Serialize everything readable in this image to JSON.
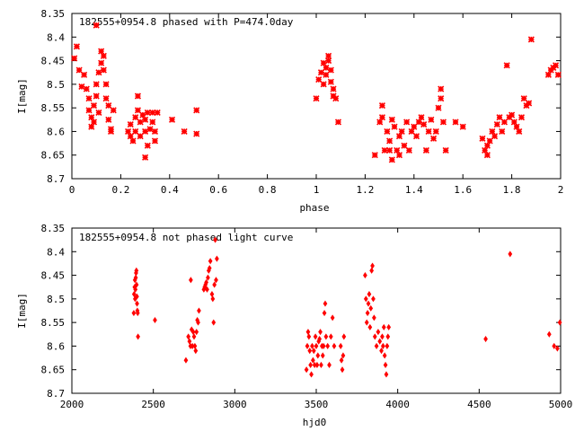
{
  "colors": {
    "marker": "#ff0000",
    "axis": "#000000",
    "background": "#ffffff"
  },
  "chart_data": [
    {
      "type": "scatter",
      "title": "182555+0954.8 phased with P=474.0day",
      "xlabel": "phase",
      "ylabel": "I[mag]",
      "xlim": [
        0,
        2
      ],
      "ylim": [
        8.35,
        8.7
      ],
      "y_inverted": true,
      "grid": false,
      "xticks": [
        0,
        0.2,
        0.4,
        0.6,
        0.8,
        1,
        1.2,
        1.4,
        1.6,
        1.8,
        2
      ],
      "xtick_labels": [
        "0",
        "0.2",
        "0.4",
        "0.6",
        "0.8",
        "1",
        "1.2",
        "1.4",
        "1.6",
        "1.8",
        "2"
      ],
      "yticks": [
        8.35,
        8.4,
        8.45,
        8.5,
        8.55,
        8.6,
        8.65,
        8.7
      ],
      "ytick_labels": [
        "8.35",
        "8.4",
        "8.45",
        "8.5",
        "8.55",
        "8.6",
        "8.65",
        "8.7"
      ],
      "marker": "star",
      "points": [
        [
          0.01,
          8.445
        ],
        [
          0.02,
          8.42
        ],
        [
          0.03,
          8.47
        ],
        [
          0.04,
          8.505
        ],
        [
          0.05,
          8.48
        ],
        [
          0.06,
          8.51
        ],
        [
          0.07,
          8.53
        ],
        [
          0.07,
          8.555
        ],
        [
          0.08,
          8.57
        ],
        [
          0.08,
          8.59
        ],
        [
          0.09,
          8.545
        ],
        [
          0.09,
          8.58
        ],
        [
          0.1,
          8.375
        ],
        [
          0.1,
          8.5
        ],
        [
          0.1,
          8.525
        ],
        [
          0.11,
          8.475
        ],
        [
          0.11,
          8.56
        ],
        [
          0.12,
          8.43
        ],
        [
          0.12,
          8.455
        ],
        [
          0.13,
          8.44
        ],
        [
          0.13,
          8.47
        ],
        [
          0.14,
          8.5
        ],
        [
          0.14,
          8.53
        ],
        [
          0.15,
          8.545
        ],
        [
          0.15,
          8.575
        ],
        [
          0.16,
          8.595
        ],
        [
          0.16,
          8.6
        ],
        [
          0.17,
          8.555
        ],
        [
          0.23,
          8.6
        ],
        [
          0.24,
          8.585
        ],
        [
          0.24,
          8.61
        ],
        [
          0.25,
          8.62
        ],
        [
          0.26,
          8.6
        ],
        [
          0.26,
          8.57
        ],
        [
          0.27,
          8.555
        ],
        [
          0.27,
          8.525
        ],
        [
          0.28,
          8.61
        ],
        [
          0.28,
          8.58
        ],
        [
          0.29,
          8.565
        ],
        [
          0.3,
          8.575
        ],
        [
          0.3,
          8.6
        ],
        [
          0.3,
          8.655
        ],
        [
          0.31,
          8.56
        ],
        [
          0.31,
          8.63
        ],
        [
          0.32,
          8.595
        ],
        [
          0.33,
          8.56
        ],
        [
          0.33,
          8.58
        ],
        [
          0.34,
          8.6
        ],
        [
          0.34,
          8.62
        ],
        [
          0.35,
          8.56
        ],
        [
          0.41,
          8.575
        ],
        [
          0.46,
          8.6
        ],
        [
          0.51,
          8.555
        ],
        [
          0.51,
          8.605
        ],
        [
          1.0,
          8.53
        ],
        [
          1.01,
          8.49
        ],
        [
          1.02,
          8.475
        ],
        [
          1.03,
          8.455
        ],
        [
          1.03,
          8.5
        ],
        [
          1.04,
          8.48
        ],
        [
          1.04,
          8.465
        ],
        [
          1.05,
          8.44
        ],
        [
          1.05,
          8.45
        ],
        [
          1.06,
          8.47
        ],
        [
          1.06,
          8.495
        ],
        [
          1.07,
          8.51
        ],
        [
          1.07,
          8.525
        ],
        [
          1.08,
          8.53
        ],
        [
          1.09,
          8.58
        ],
        [
          1.24,
          8.65
        ],
        [
          1.26,
          8.58
        ],
        [
          1.27,
          8.57
        ],
        [
          1.27,
          8.545
        ],
        [
          1.28,
          8.64
        ],
        [
          1.29,
          8.6
        ],
        [
          1.3,
          8.62
        ],
        [
          1.3,
          8.64
        ],
        [
          1.31,
          8.66
        ],
        [
          1.31,
          8.575
        ],
        [
          1.32,
          8.59
        ],
        [
          1.33,
          8.64
        ],
        [
          1.34,
          8.61
        ],
        [
          1.34,
          8.65
        ],
        [
          1.35,
          8.6
        ],
        [
          1.36,
          8.63
        ],
        [
          1.37,
          8.58
        ],
        [
          1.38,
          8.64
        ],
        [
          1.39,
          8.6
        ],
        [
          1.4,
          8.59
        ],
        [
          1.41,
          8.61
        ],
        [
          1.42,
          8.58
        ],
        [
          1.43,
          8.57
        ],
        [
          1.44,
          8.585
        ],
        [
          1.45,
          8.64
        ],
        [
          1.46,
          8.6
        ],
        [
          1.47,
          8.575
        ],
        [
          1.48,
          8.615
        ],
        [
          1.49,
          8.6
        ],
        [
          1.5,
          8.55
        ],
        [
          1.51,
          8.53
        ],
        [
          1.51,
          8.51
        ],
        [
          1.52,
          8.58
        ],
        [
          1.53,
          8.64
        ],
        [
          1.57,
          8.58
        ],
        [
          1.6,
          8.59
        ],
        [
          1.68,
          8.615
        ],
        [
          1.69,
          8.64
        ],
        [
          1.7,
          8.65
        ],
        [
          1.7,
          8.63
        ],
        [
          1.71,
          8.62
        ],
        [
          1.72,
          8.6
        ],
        [
          1.73,
          8.61
        ],
        [
          1.74,
          8.585
        ],
        [
          1.75,
          8.57
        ],
        [
          1.76,
          8.6
        ],
        [
          1.77,
          8.58
        ],
        [
          1.78,
          8.46
        ],
        [
          1.79,
          8.57
        ],
        [
          1.8,
          8.565
        ],
        [
          1.81,
          8.58
        ],
        [
          1.82,
          8.59
        ],
        [
          1.83,
          8.6
        ],
        [
          1.84,
          8.57
        ],
        [
          1.85,
          8.53
        ],
        [
          1.86,
          8.545
        ],
        [
          1.87,
          8.54
        ],
        [
          1.88,
          8.405
        ],
        [
          1.95,
          8.48
        ],
        [
          1.96,
          8.47
        ],
        [
          1.97,
          8.465
        ],
        [
          1.98,
          8.46
        ],
        [
          1.99,
          8.48
        ]
      ]
    },
    {
      "type": "scatter",
      "title": "182555+0954.8 not phased light curve",
      "xlabel": "hjd0",
      "ylabel": "I[mag]",
      "xlim": [
        2000,
        5000
      ],
      "ylim": [
        8.35,
        8.7
      ],
      "y_inverted": true,
      "grid": false,
      "xticks": [
        2000,
        2500,
        3000,
        3500,
        4000,
        4500,
        5000
      ],
      "xtick_labels": [
        "2000",
        "2500",
        "3000",
        "3500",
        "4000",
        "4500",
        "5000"
      ],
      "yticks": [
        8.35,
        8.4,
        8.45,
        8.5,
        8.55,
        8.6,
        8.65,
        8.7
      ],
      "ytick_labels": [
        "8.35",
        "8.4",
        "8.45",
        "8.5",
        "8.55",
        "8.6",
        "8.65",
        "8.7"
      ],
      "marker": "diamond",
      "points": [
        [
          2380,
          8.53
        ],
        [
          2382,
          8.49
        ],
        [
          2385,
          8.475
        ],
        [
          2387,
          8.46
        ],
        [
          2388,
          8.5
        ],
        [
          2390,
          8.48
        ],
        [
          2392,
          8.455
        ],
        [
          2394,
          8.445
        ],
        [
          2396,
          8.44
        ],
        [
          2397,
          8.47
        ],
        [
          2399,
          8.495
        ],
        [
          2400,
          8.51
        ],
        [
          2402,
          8.525
        ],
        [
          2404,
          8.53
        ],
        [
          2406,
          8.58
        ],
        [
          2510,
          8.545
        ],
        [
          2700,
          8.63
        ],
        [
          2715,
          8.58
        ],
        [
          2722,
          8.59
        ],
        [
          2728,
          8.6
        ],
        [
          2730,
          8.46
        ],
        [
          2735,
          8.565
        ],
        [
          2740,
          8.6
        ],
        [
          2745,
          8.57
        ],
        [
          2750,
          8.58
        ],
        [
          2755,
          8.6
        ],
        [
          2760,
          8.61
        ],
        [
          2765,
          8.57
        ],
        [
          2770,
          8.545
        ],
        [
          2775,
          8.55
        ],
        [
          2780,
          8.525
        ],
        [
          2810,
          8.48
        ],
        [
          2815,
          8.475
        ],
        [
          2820,
          8.47
        ],
        [
          2825,
          8.465
        ],
        [
          2830,
          8.48
        ],
        [
          2835,
          8.455
        ],
        [
          2840,
          8.44
        ],
        [
          2845,
          8.435
        ],
        [
          2850,
          8.42
        ],
        [
          2860,
          8.49
        ],
        [
          2865,
          8.5
        ],
        [
          2870,
          8.55
        ],
        [
          2875,
          8.47
        ],
        [
          2880,
          8.375
        ],
        [
          2885,
          8.46
        ],
        [
          2890,
          8.415
        ],
        [
          3440,
          8.65
        ],
        [
          3445,
          8.6
        ],
        [
          3450,
          8.57
        ],
        [
          3455,
          8.58
        ],
        [
          3460,
          8.61
        ],
        [
          3465,
          8.64
        ],
        [
          3470,
          8.66
        ],
        [
          3475,
          8.6
        ],
        [
          3480,
          8.63
        ],
        [
          3485,
          8.61
        ],
        [
          3490,
          8.64
        ],
        [
          3495,
          8.58
        ],
        [
          3500,
          8.6
        ],
        [
          3505,
          8.64
        ],
        [
          3510,
          8.62
        ],
        [
          3515,
          8.59
        ],
        [
          3520,
          8.585
        ],
        [
          3525,
          8.57
        ],
        [
          3530,
          8.64
        ],
        [
          3535,
          8.6
        ],
        [
          3540,
          8.62
        ],
        [
          3545,
          8.6
        ],
        [
          3550,
          8.53
        ],
        [
          3555,
          8.51
        ],
        [
          3560,
          8.58
        ],
        [
          3570,
          8.6
        ],
        [
          3580,
          8.64
        ],
        [
          3590,
          8.58
        ],
        [
          3600,
          8.54
        ],
        [
          3610,
          8.6
        ],
        [
          3650,
          8.6
        ],
        [
          3655,
          8.63
        ],
        [
          3660,
          8.65
        ],
        [
          3665,
          8.62
        ],
        [
          3670,
          8.58
        ],
        [
          3800,
          8.45
        ],
        [
          3805,
          8.5
        ],
        [
          3810,
          8.55
        ],
        [
          3815,
          8.53
        ],
        [
          3820,
          8.51
        ],
        [
          3825,
          8.49
        ],
        [
          3830,
          8.56
        ],
        [
          3835,
          8.52
        ],
        [
          3840,
          8.44
        ],
        [
          3845,
          8.43
        ],
        [
          3850,
          8.5
        ],
        [
          3855,
          8.54
        ],
        [
          3860,
          8.58
        ],
        [
          3870,
          8.6
        ],
        [
          3880,
          8.57
        ],
        [
          3890,
          8.59
        ],
        [
          3900,
          8.61
        ],
        [
          3905,
          8.58
        ],
        [
          3910,
          8.6
        ],
        [
          3915,
          8.56
        ],
        [
          3920,
          8.62
        ],
        [
          3925,
          8.64
        ],
        [
          3930,
          8.66
        ],
        [
          3935,
          8.6
        ],
        [
          3940,
          8.58
        ],
        [
          3945,
          8.56
        ],
        [
          4540,
          8.585
        ],
        [
          4690,
          8.405
        ],
        [
          4930,
          8.575
        ],
        [
          4960,
          8.6
        ],
        [
          4980,
          8.605
        ],
        [
          4995,
          8.55
        ]
      ]
    }
  ]
}
